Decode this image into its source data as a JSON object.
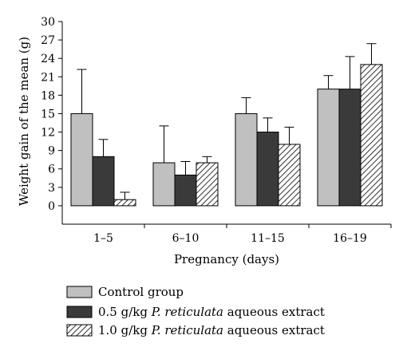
{
  "chart_data": {
    "type": "bar",
    "xlabel": "Pregnancy (days)",
    "ylabel": "Weight gain of the mean (g)",
    "ylim": [
      -3,
      30
    ],
    "yticks": [
      0,
      3,
      6,
      9,
      12,
      15,
      18,
      21,
      24,
      27,
      30
    ],
    "categories": [
      "1–5",
      "6–10",
      "11–15",
      "16–19"
    ],
    "grid": false,
    "legend_position": "bottom",
    "series": [
      {
        "name": "Control group",
        "values": [
          15,
          7,
          15,
          19
        ],
        "error": [
          7.2,
          6.0,
          2.6,
          2.2
        ],
        "fill": "#c0c0c0",
        "pattern": "solid"
      },
      {
        "name": "0.5 g/kg P. reticulata aqueous extract",
        "values": [
          8,
          5,
          12,
          19
        ],
        "error": [
          2.8,
          2.2,
          2.3,
          5.3
        ],
        "fill": "#3a3a3a",
        "pattern": "solid"
      },
      {
        "name": "1.0 g/kg P. reticulata aqueous extract",
        "values": [
          1,
          7,
          10,
          23
        ],
        "error": [
          1.2,
          1.0,
          2.8,
          3.4
        ],
        "fill": "#ffffff",
        "pattern": "hatched"
      }
    ]
  },
  "legend": {
    "items": [
      {
        "pre": "Control group",
        "italic": "",
        "post": ""
      },
      {
        "pre": "0.5 g/kg ",
        "italic": "P. reticulata",
        "post": " aqueous extract"
      },
      {
        "pre": "1.0 g/kg ",
        "italic": "P. reticulata",
        "post": " aqueous extract"
      }
    ]
  }
}
